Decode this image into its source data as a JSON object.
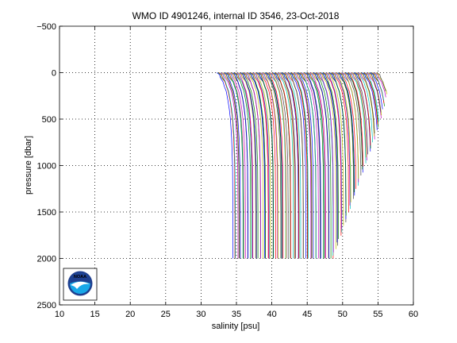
{
  "chart_data": {
    "type": "line",
    "title": "WMO ID 4901246, internal ID 3546, 23-Oct-2018",
    "xlabel": "salinity [psu]",
    "ylabel": "pressure [dbar]",
    "xlim": [
      10,
      60
    ],
    "ylim": [
      -500,
      2500
    ],
    "y_reversed": true,
    "grid": true,
    "x_ticks": [
      10,
      15,
      20,
      25,
      30,
      35,
      40,
      45,
      50,
      55,
      60
    ],
    "y_ticks": [
      -500,
      0,
      500,
      1000,
      1500,
      2000,
      2500
    ],
    "y_tick_labels": [
      "−500",
      "0",
      "500",
      "1000",
      "1500",
      "2000",
      "2500"
    ],
    "series_colors": [
      "#0000ff",
      "#008000",
      "#ff0000",
      "#00bfbf",
      "#bf00bf",
      "#bfbf00",
      "#404040"
    ],
    "profile_count": 140,
    "profile_offset_step_psu": 0.163,
    "profile_shape_psu": {
      "pressure": [
        0,
        20,
        50,
        100,
        150,
        200,
        300,
        400,
        500,
        700,
        1000,
        1500,
        2000
      ],
      "salinity_offset": [
        -0.3,
        0.1,
        0.2,
        0.6,
        0.8,
        1.05,
        1.3,
        1.5,
        1.65,
        1.82,
        1.95,
        2.0,
        2.0
      ]
    },
    "series": [
      {
        "start_salinity": 32.5,
        "end_salinity": 34.5,
        "max_pressure": 2000
      },
      {
        "start_salinity": 55.0,
        "end_salinity": 56.5,
        "max_pressure": 700
      }
    ]
  },
  "logo": {
    "text": "NOAA",
    "colors": {
      "ring": "#1f3f8f",
      "sky": "#1f3f8f",
      "sea": "#18a8e8",
      "bird": "#ffffff"
    }
  }
}
